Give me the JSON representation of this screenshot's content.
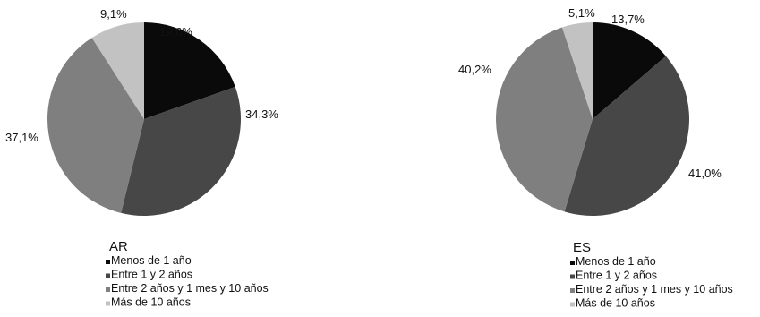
{
  "chart_data": [
    {
      "type": "pie",
      "title": "AR",
      "categories": [
        "Menos de 1 año",
        "Entre 1 y 2 años",
        "Entre 2 años y 1 mes y 10 años",
        "Más de 10 años"
      ],
      "values": [
        19.6,
        34.3,
        37.1,
        9.1
      ],
      "value_labels": [
        "19,6%",
        "34,3%",
        "37,1%",
        "9,1%"
      ],
      "colors": [
        "#0a0a0a",
        "#474747",
        "#7f7f7f",
        "#c2c2c2"
      ],
      "legend": "bottom"
    },
    {
      "type": "pie",
      "title": "ES",
      "categories": [
        "Menos de 1 año",
        "Entre 1 y 2 años",
        "Entre 2 años y 1 mes y 10 años",
        "Más de 10 años"
      ],
      "values": [
        13.7,
        41.0,
        40.2,
        5.1
      ],
      "value_labels": [
        "13,7%",
        "41,0%",
        "40,2%",
        "5,1%"
      ],
      "colors": [
        "#0a0a0a",
        "#474747",
        "#7f7f7f",
        "#c2c2c2"
      ],
      "legend": "bottom"
    }
  ]
}
